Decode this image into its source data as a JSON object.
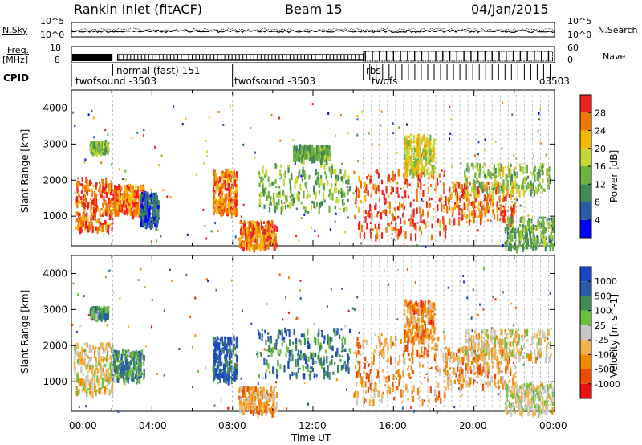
{
  "header": {
    "title": "Rankin Inlet (fitACF)",
    "beam": "Beam 15",
    "date": "04/Jan/2015"
  },
  "left_labels": {
    "nsky": "N.Sky",
    "freq_line1": "Freq.",
    "freq_line2": "[MHz]",
    "cpid": "CPID"
  },
  "right_labels": {
    "nsearch": "N.Search",
    "nave": "Nave"
  },
  "noise_axis": {
    "left_ticks": [
      "10^5",
      "10^0"
    ],
    "right_ticks": [
      "10^5",
      "10^0"
    ]
  },
  "freq_axis": {
    "left_ticks": [
      "18",
      "8"
    ],
    "right_ticks": [
      "60",
      "0"
    ]
  },
  "cpid_labels": [
    {
      "text": "normal (fast) 151",
      "t": 2.2
    },
    {
      "text": "twofsound -3503",
      "t": 0.1
    },
    {
      "text": "twofsound -3503",
      "t": 8.1
    },
    {
      "text": "rbs",
      "t": 14.6
    },
    {
      "text": "twofs",
      "t": 14.9
    },
    {
      "text": "o3503",
      "t": 23.1
    }
  ],
  "time_axis": {
    "label": "Time UT",
    "ticks": [
      "00:00",
      "04:00",
      "08:00",
      "12:00",
      "16:00",
      "20:00",
      "00:00"
    ]
  },
  "chart_data": [
    {
      "type": "heatmap",
      "title": "Power",
      "xlabel": "",
      "ylabel": "Slant Range [km]",
      "xlim": [
        0,
        24
      ],
      "ylim": [
        180,
        4500
      ],
      "yticks": [
        1000,
        2000,
        3000,
        4000
      ],
      "colorbar": {
        "label": "Power [dB]",
        "ticks": [
          "28",
          "24",
          "20",
          "16",
          "12",
          "8",
          "4"
        ]
      },
      "regions": [
        {
          "t0": 0.2,
          "t1": 2.0,
          "r0": 700,
          "r1": 2100,
          "level": 0.85
        },
        {
          "t0": 2.0,
          "t1": 3.6,
          "r0": 1100,
          "r1": 1900,
          "level": 0.8
        },
        {
          "t0": 0.9,
          "t1": 1.8,
          "r0": 2850,
          "r1": 3100,
          "level": 0.45
        },
        {
          "t0": 3.4,
          "t1": 4.3,
          "r0": 800,
          "r1": 1700,
          "level": 0.2
        },
        {
          "t0": 7.0,
          "t1": 8.2,
          "r0": 1100,
          "r1": 2300,
          "level": 0.8
        },
        {
          "t0": 8.3,
          "t1": 10.2,
          "r0": 180,
          "r1": 900,
          "level": 0.85
        },
        {
          "t0": 9.2,
          "t1": 13.8,
          "r0": 1200,
          "r1": 2500,
          "level": 0.45
        },
        {
          "t0": 11.0,
          "t1": 12.8,
          "r0": 2600,
          "r1": 3000,
          "level": 0.4
        },
        {
          "t0": 14.0,
          "t1": 18.6,
          "r0": 500,
          "r1": 2300,
          "level": 0.9
        },
        {
          "t0": 16.5,
          "t1": 18.0,
          "r0": 2200,
          "r1": 3300,
          "level": 0.6
        },
        {
          "t0": 18.6,
          "t1": 22.0,
          "r0": 900,
          "r1": 2000,
          "level": 0.85
        },
        {
          "t0": 19.5,
          "t1": 23.8,
          "r0": 1700,
          "r1": 2500,
          "level": 0.5
        },
        {
          "t0": 21.5,
          "t1": 23.9,
          "r0": 180,
          "r1": 1000,
          "level": 0.4
        }
      ]
    },
    {
      "type": "heatmap",
      "title": "Velocity",
      "xlabel": "Time UT",
      "ylabel": "Slant Range [km]",
      "xlim": [
        0,
        24
      ],
      "ylim": [
        180,
        4500
      ],
      "yticks": [
        1000,
        2000,
        3000,
        4000
      ],
      "colorbar": {
        "label": "Velocity [m s^-1]",
        "ticks": [
          "1000",
          "500",
          "100",
          "25",
          "-25",
          "-100",
          "-500",
          "-1000"
        ]
      },
      "regions": [
        {
          "t0": 0.1,
          "t1": 2.0,
          "r0": 700,
          "r1": 2100,
          "level": 0.45
        },
        {
          "t0": 2.0,
          "t1": 3.6,
          "r0": 1100,
          "r1": 1900,
          "level": 0.7
        },
        {
          "t0": 0.9,
          "t1": 1.8,
          "r0": 2850,
          "r1": 3100,
          "level": 0.7
        },
        {
          "t0": 7.0,
          "t1": 8.2,
          "r0": 1100,
          "r1": 2300,
          "level": 0.85
        },
        {
          "t0": 8.3,
          "t1": 10.2,
          "r0": 180,
          "r1": 900,
          "level": 0.35
        },
        {
          "t0": 9.2,
          "t1": 13.8,
          "r0": 1200,
          "r1": 2500,
          "level": 0.75
        },
        {
          "t0": 14.0,
          "t1": 18.6,
          "r0": 500,
          "r1": 2300,
          "level": 0.3
        },
        {
          "t0": 16.5,
          "t1": 18.0,
          "r0": 2200,
          "r1": 3300,
          "level": 0.28
        },
        {
          "t0": 18.6,
          "t1": 22.0,
          "r0": 900,
          "r1": 2000,
          "level": 0.32
        },
        {
          "t0": 19.5,
          "t1": 23.8,
          "r0": 1700,
          "r1": 2500,
          "level": 0.45
        },
        {
          "t0": 21.5,
          "t1": 23.9,
          "r0": 180,
          "r1": 1000,
          "level": 0.5
        }
      ]
    }
  ],
  "colors": {
    "power_scale": [
      "#0000ff",
      "#2a5aa8",
      "#3f8a55",
      "#6db33f",
      "#c8d832",
      "#f5b800",
      "#f07800",
      "#ee2020"
    ],
    "velocity_scale": [
      "#ee1010",
      "#f04a00",
      "#f28a00",
      "#f5b24a",
      "#c8c8c8",
      "#6cc23c",
      "#3f8a55",
      "#2a5aa8",
      "#1844c8"
    ]
  }
}
